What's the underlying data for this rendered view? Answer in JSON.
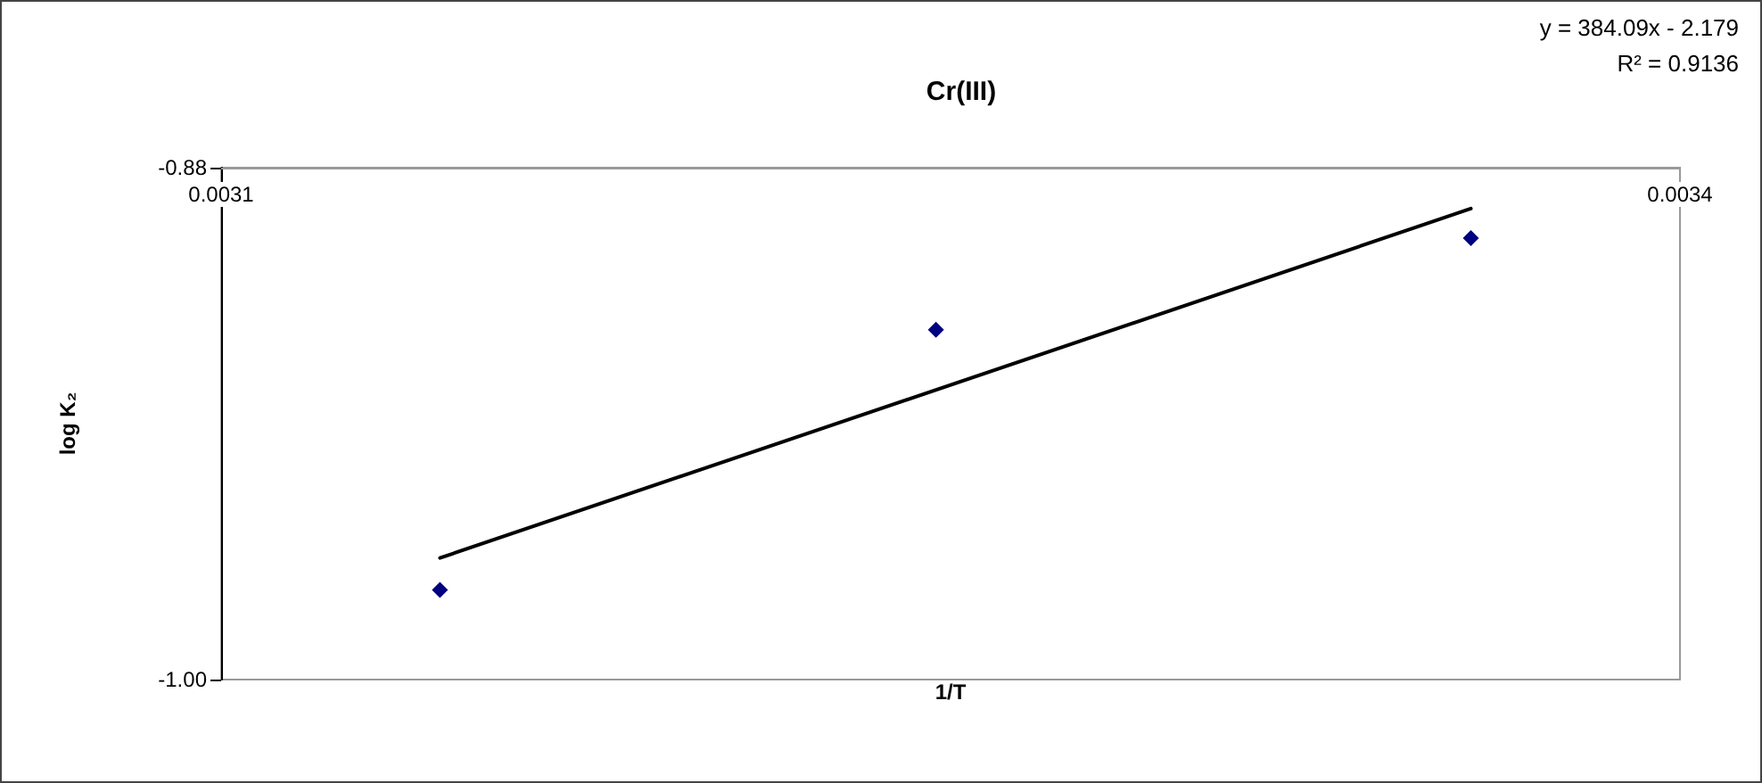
{
  "chart_data": {
    "type": "scatter",
    "title": "Cr(III)",
    "xlabel": "1/T",
    "ylabel": "log K₂",
    "annotations": [
      "y = 384.09x - 2.179",
      "R² = 0.9136"
    ],
    "series": [
      {
        "type": "scatter",
        "color": "#000080",
        "marker": "diamond",
        "x": [
          0.003145,
          0.003247,
          0.003357
        ],
        "values": [
          -0.979,
          -0.918,
          -0.8965
        ]
      },
      {
        "type": "line",
        "marker": "none",
        "color": "#000000",
        "x": [
          0.003145,
          0.003357
        ],
        "values": [
          -0.9715,
          -0.8896
        ]
      }
    ],
    "grid": false,
    "xlim": [
      0.0031,
      0.0034
    ],
    "xticks": [
      0.0031,
      0.0034
    ],
    "ylim": [
      -1.0,
      -0.88
    ],
    "yticks": [
      {
        "value": -1.0,
        "label": "-1.00"
      },
      -0.88
    ]
  }
}
